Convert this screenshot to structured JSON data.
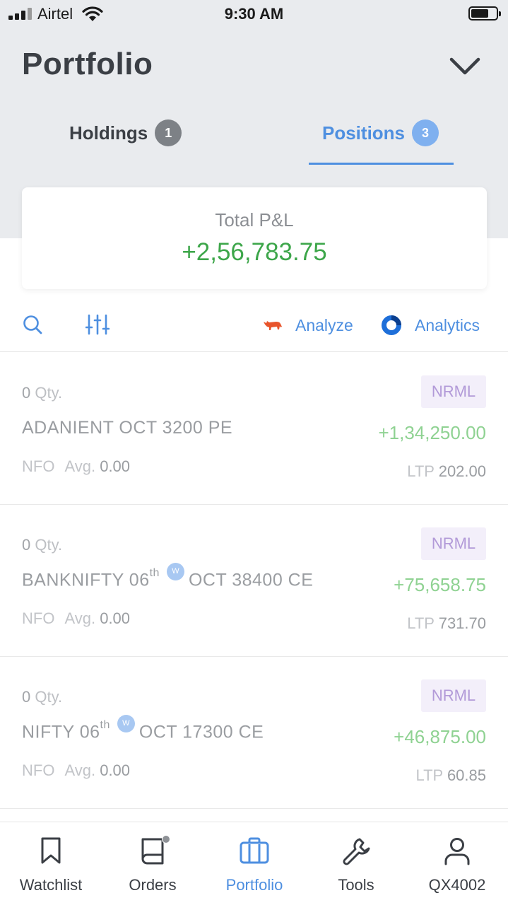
{
  "status_bar": {
    "carrier": "Airtel",
    "time": "9:30 AM"
  },
  "header": {
    "title": "Portfolio"
  },
  "tabs": [
    {
      "label": "Holdings",
      "count": "1",
      "active": false
    },
    {
      "label": "Positions",
      "count": "3",
      "active": true
    }
  ],
  "summary": {
    "label": "Total P&L",
    "value": "+2,56,783.75"
  },
  "toolbar": {
    "analyze_label": "Analyze",
    "analytics_label": "Analytics"
  },
  "positions": [
    {
      "qty": "0",
      "qty_label": "Qty.",
      "symbol": "ADANIENT OCT 3200 PE",
      "exchange": "NFO",
      "avg_label": "Avg.",
      "avg": "0.00",
      "product": "NRML",
      "pnl": "+1,34,250.00",
      "ltp_label": "LTP",
      "ltp": "202.00"
    },
    {
      "qty": "0",
      "qty_label": "Qty.",
      "symbol_prefix": "BANKNIFTY 06",
      "symbol_suffix": "th",
      "weekly_badge": "W",
      "symbol_rest": "OCT 38400 CE",
      "exchange": "NFO",
      "avg_label": "Avg.",
      "avg": "0.00",
      "product": "NRML",
      "pnl": "+75,658.75",
      "ltp_label": "LTP",
      "ltp": "731.70"
    },
    {
      "qty": "0",
      "qty_label": "Qty.",
      "symbol_prefix": "NIFTY 06",
      "symbol_suffix": "th",
      "weekly_badge": "W",
      "symbol_rest": "OCT 17300 CE",
      "exchange": "NFO",
      "avg_label": "Avg.",
      "avg": "0.00",
      "product": "NRML",
      "pnl": "+46,875.00",
      "ltp_label": "LTP",
      "ltp": "60.85"
    }
  ],
  "bottom_nav": [
    {
      "label": "Watchlist",
      "icon": "bookmark-icon"
    },
    {
      "label": "Orders",
      "icon": "book-icon"
    },
    {
      "label": "Portfolio",
      "icon": "briefcase-icon",
      "active": true
    },
    {
      "label": "Tools",
      "icon": "wrench-icon"
    },
    {
      "label": "QX4002",
      "icon": "user-icon"
    }
  ],
  "colors": {
    "accent": "#4e8fe0",
    "profit": "#3da64a",
    "profit_light": "#8fd292",
    "badge_bg": "#f3effa",
    "badge_text": "#b29ad8"
  }
}
